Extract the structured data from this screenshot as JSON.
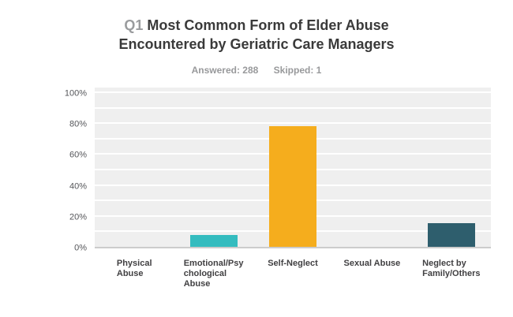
{
  "header": {
    "question_number": "Q1",
    "title_line1": "Most Common Form of Elder Abuse",
    "title_line2": "Encountered by Geriatric Care Managers",
    "answered_stat": "Answered: 288",
    "skipped_stat": "Skipped: 1"
  },
  "colors": {
    "title_text": "#3a3a3a",
    "question_number_gray": "#9a9c9e",
    "subtitle_gray": "#98999b",
    "plot_background": "#efefef",
    "gridline_white": "#ffffff",
    "axis_line": "#cccccc",
    "bar_teal": "#34bcbf",
    "bar_orange": "#f5ad1d",
    "bar_dark_slate": "#2e5e6d"
  },
  "chart_data": {
    "type": "bar",
    "title": "Q1 Most Common Form of Elder Abuse Encountered by Geriatric Care Managers",
    "answered": 288,
    "skipped": 1,
    "categories": [
      "Physical Abuse",
      "Emotional/Psychological Abuse",
      "Self-Neglect",
      "Sexual Abuse",
      "Neglect by Family/Others"
    ],
    "category_label_lines": [
      [
        "Physical",
        "Abuse"
      ],
      [
        "Emotional/Psy",
        "chological",
        "Abuse"
      ],
      [
        "Self-Neglect"
      ],
      [
        "Sexual Abuse"
      ],
      [
        "Neglect by",
        "Family/Others"
      ]
    ],
    "values": [
      0,
      7.7,
      78,
      0,
      15.3
    ],
    "bar_colors": [
      null,
      "#34bcbf",
      "#f5ad1d",
      null,
      "#2e5e6d"
    ],
    "xlabel": "",
    "ylabel": "",
    "ylim": [
      0,
      100
    ],
    "yticks": [
      0,
      20,
      40,
      60,
      80,
      100
    ],
    "ytick_labels": [
      "0%",
      "20%",
      "40%",
      "60%",
      "80%",
      "100%"
    ],
    "gridline_step": 10,
    "grid": true,
    "legend_position": "none"
  }
}
